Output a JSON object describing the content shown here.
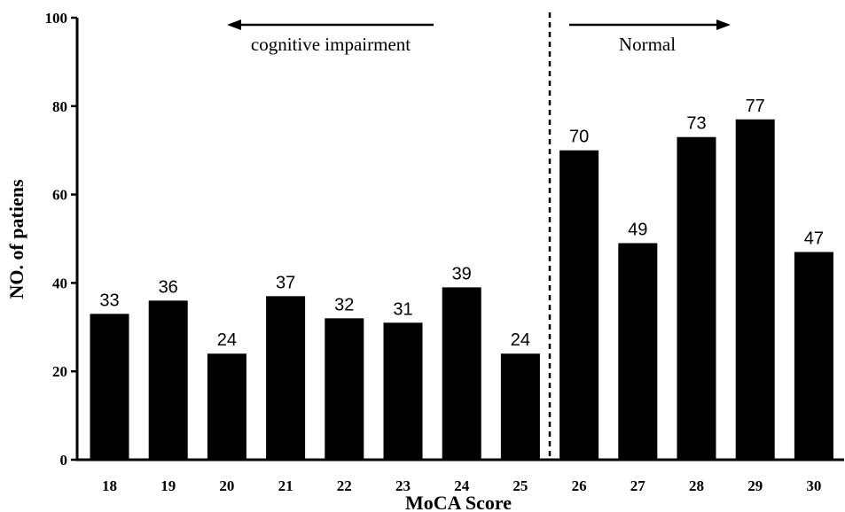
{
  "chart_data": {
    "type": "bar",
    "categories": [
      "18",
      "19",
      "20",
      "21",
      "22",
      "23",
      "24",
      "25",
      "26",
      "27",
      "28",
      "29",
      "30"
    ],
    "values": [
      33,
      36,
      24,
      37,
      32,
      31,
      39,
      24,
      70,
      49,
      73,
      77,
      47
    ],
    "title": "",
    "xlabel": "MoCA Score",
    "ylabel": "NO. of patiens",
    "ylim": [
      0,
      100
    ],
    "yticks": [
      "0",
      "20",
      "40",
      "60",
      "80",
      "100"
    ],
    "grid": false,
    "bar_color": "#000000",
    "annotations": {
      "left_label": "cognitive impairment",
      "right_label": "Normal",
      "divider_after_category": "25"
    }
  }
}
